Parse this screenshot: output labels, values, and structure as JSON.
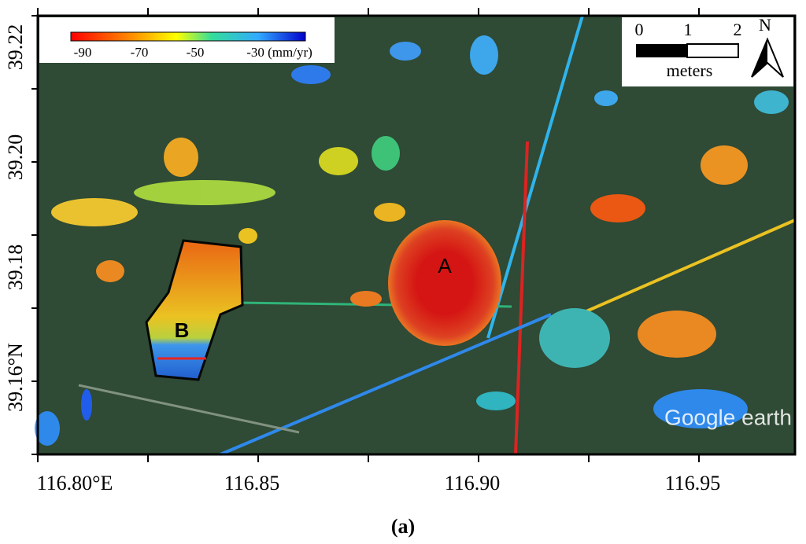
{
  "map": {
    "lat_labels": [
      "39.22",
      "39.20",
      "39.18",
      "39.16°N"
    ],
    "lon_labels": [
      "116.80°E",
      "116.85",
      "116.90",
      "116.95"
    ],
    "colorbar_labels": [
      "-90",
      "-70",
      "-50",
      "-30 (mm/yr)"
    ],
    "scale_labels": [
      "0",
      "1",
      "2"
    ],
    "scale_unit": "meters",
    "north": "N",
    "markers": [
      "A",
      "B"
    ],
    "watermark": "Google earth",
    "caption": "(a)"
  }
}
